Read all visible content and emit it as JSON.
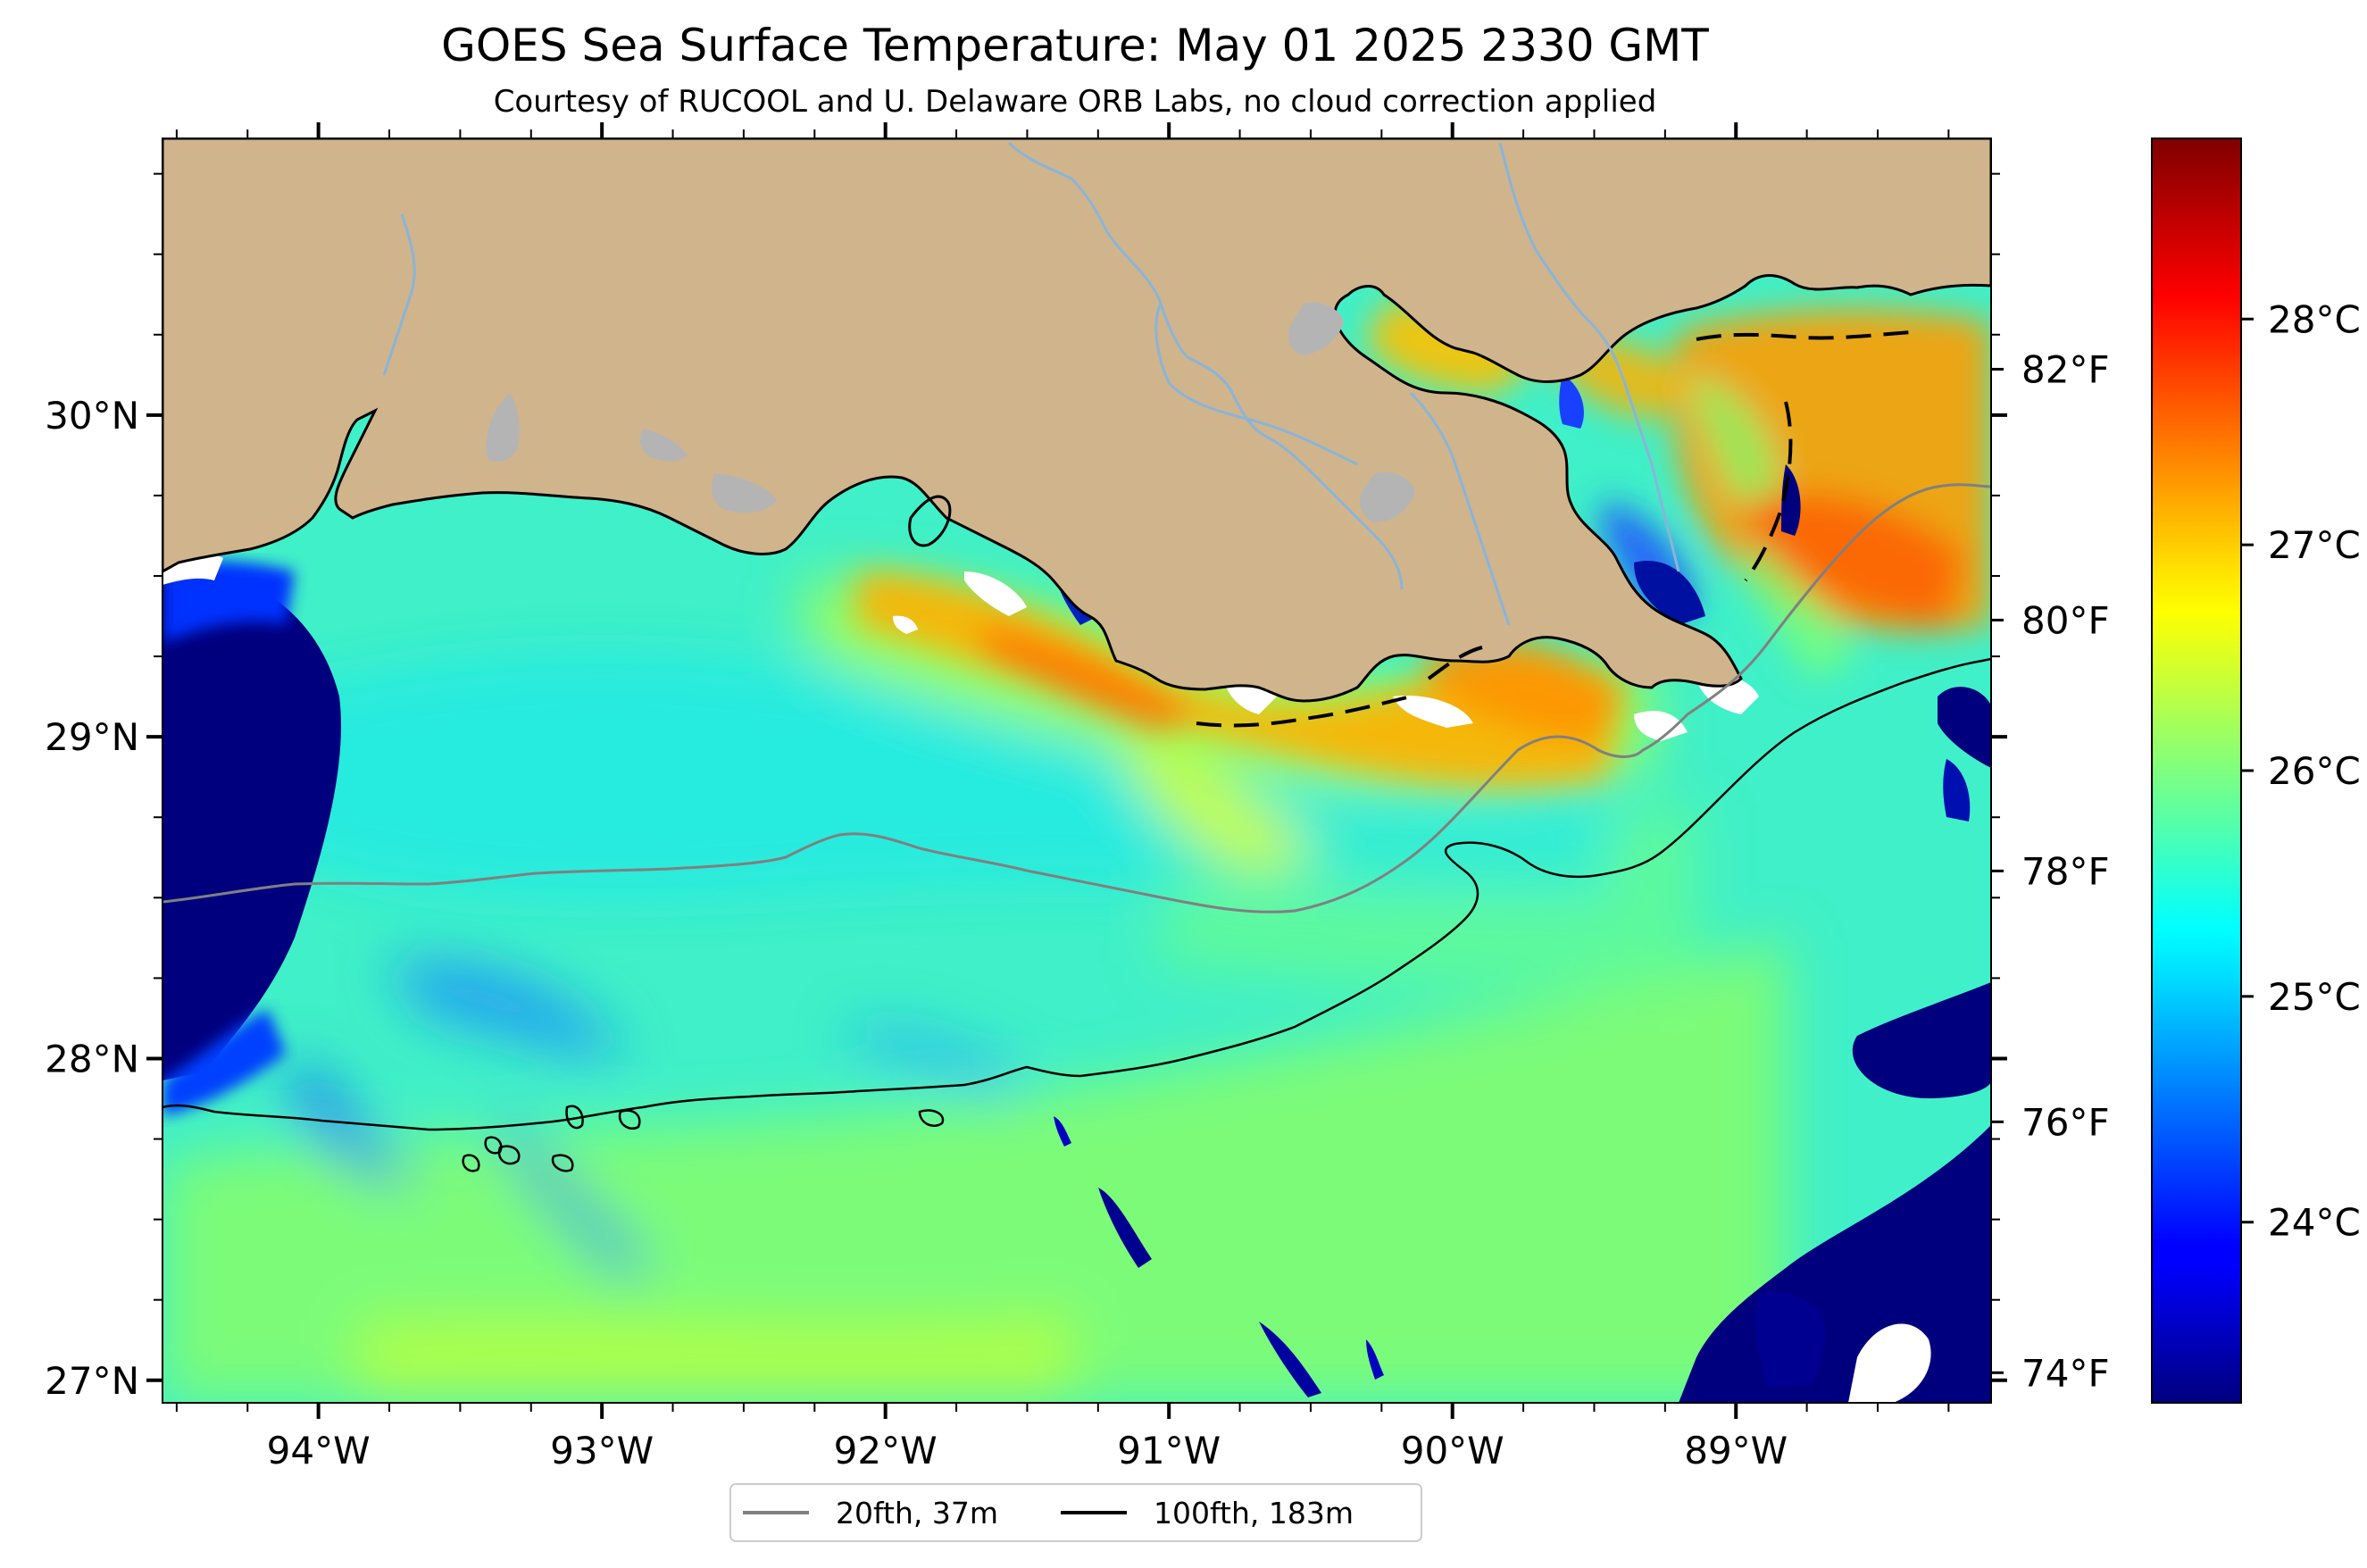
{
  "title": "GOES Sea Surface Temperature: May 01 2025 2330 GMT",
  "subtitle": "Courtesy of RUCOOL and U. Delaware ORB Labs, no cloud correction applied",
  "map": {
    "lon_ticks": [
      {
        "value": -94,
        "label": "94°W"
      },
      {
        "value": -93,
        "label": "93°W"
      },
      {
        "value": -92,
        "label": "92°W"
      },
      {
        "value": -91,
        "label": "91°W"
      },
      {
        "value": -90,
        "label": "90°W"
      },
      {
        "value": -89,
        "label": "89°W"
      }
    ],
    "lat_ticks": [
      {
        "value": 30,
        "label": "30°N"
      },
      {
        "value": 29,
        "label": "29°N"
      },
      {
        "value": 28,
        "label": "28°N"
      },
      {
        "value": 27,
        "label": "27°N"
      }
    ],
    "extent": {
      "lon_min": -94.55,
      "lon_max": -88.1,
      "lat_min": 26.93,
      "lat_max": 30.86
    }
  },
  "colorbar": {
    "celsius_ticks": [
      {
        "value": 28,
        "label": "28°C"
      },
      {
        "value": 27,
        "label": "27°C"
      },
      {
        "value": 26,
        "label": "26°C"
      },
      {
        "value": 25,
        "label": "25°C"
      },
      {
        "value": 24,
        "label": "24°C"
      }
    ],
    "fahrenheit_ticks": [
      {
        "value": 82,
        "label": "82°F"
      },
      {
        "value": 80,
        "label": "80°F"
      },
      {
        "value": 78,
        "label": "78°F"
      },
      {
        "value": 76,
        "label": "76°F"
      },
      {
        "value": 74,
        "label": "74°F"
      }
    ],
    "range_c": [
      23.2,
      28.8
    ],
    "colormap": "jet"
  },
  "legend": {
    "entries": [
      {
        "label": "20fth, 37m",
        "color": "#808080"
      },
      {
        "label": "100fth, 183m",
        "color": "#000000"
      }
    ]
  },
  "colors": {
    "land": "#d0b48c",
    "lake": "#b4b4b4",
    "river": "#8ab4d8",
    "no_data": "#ffffff"
  }
}
